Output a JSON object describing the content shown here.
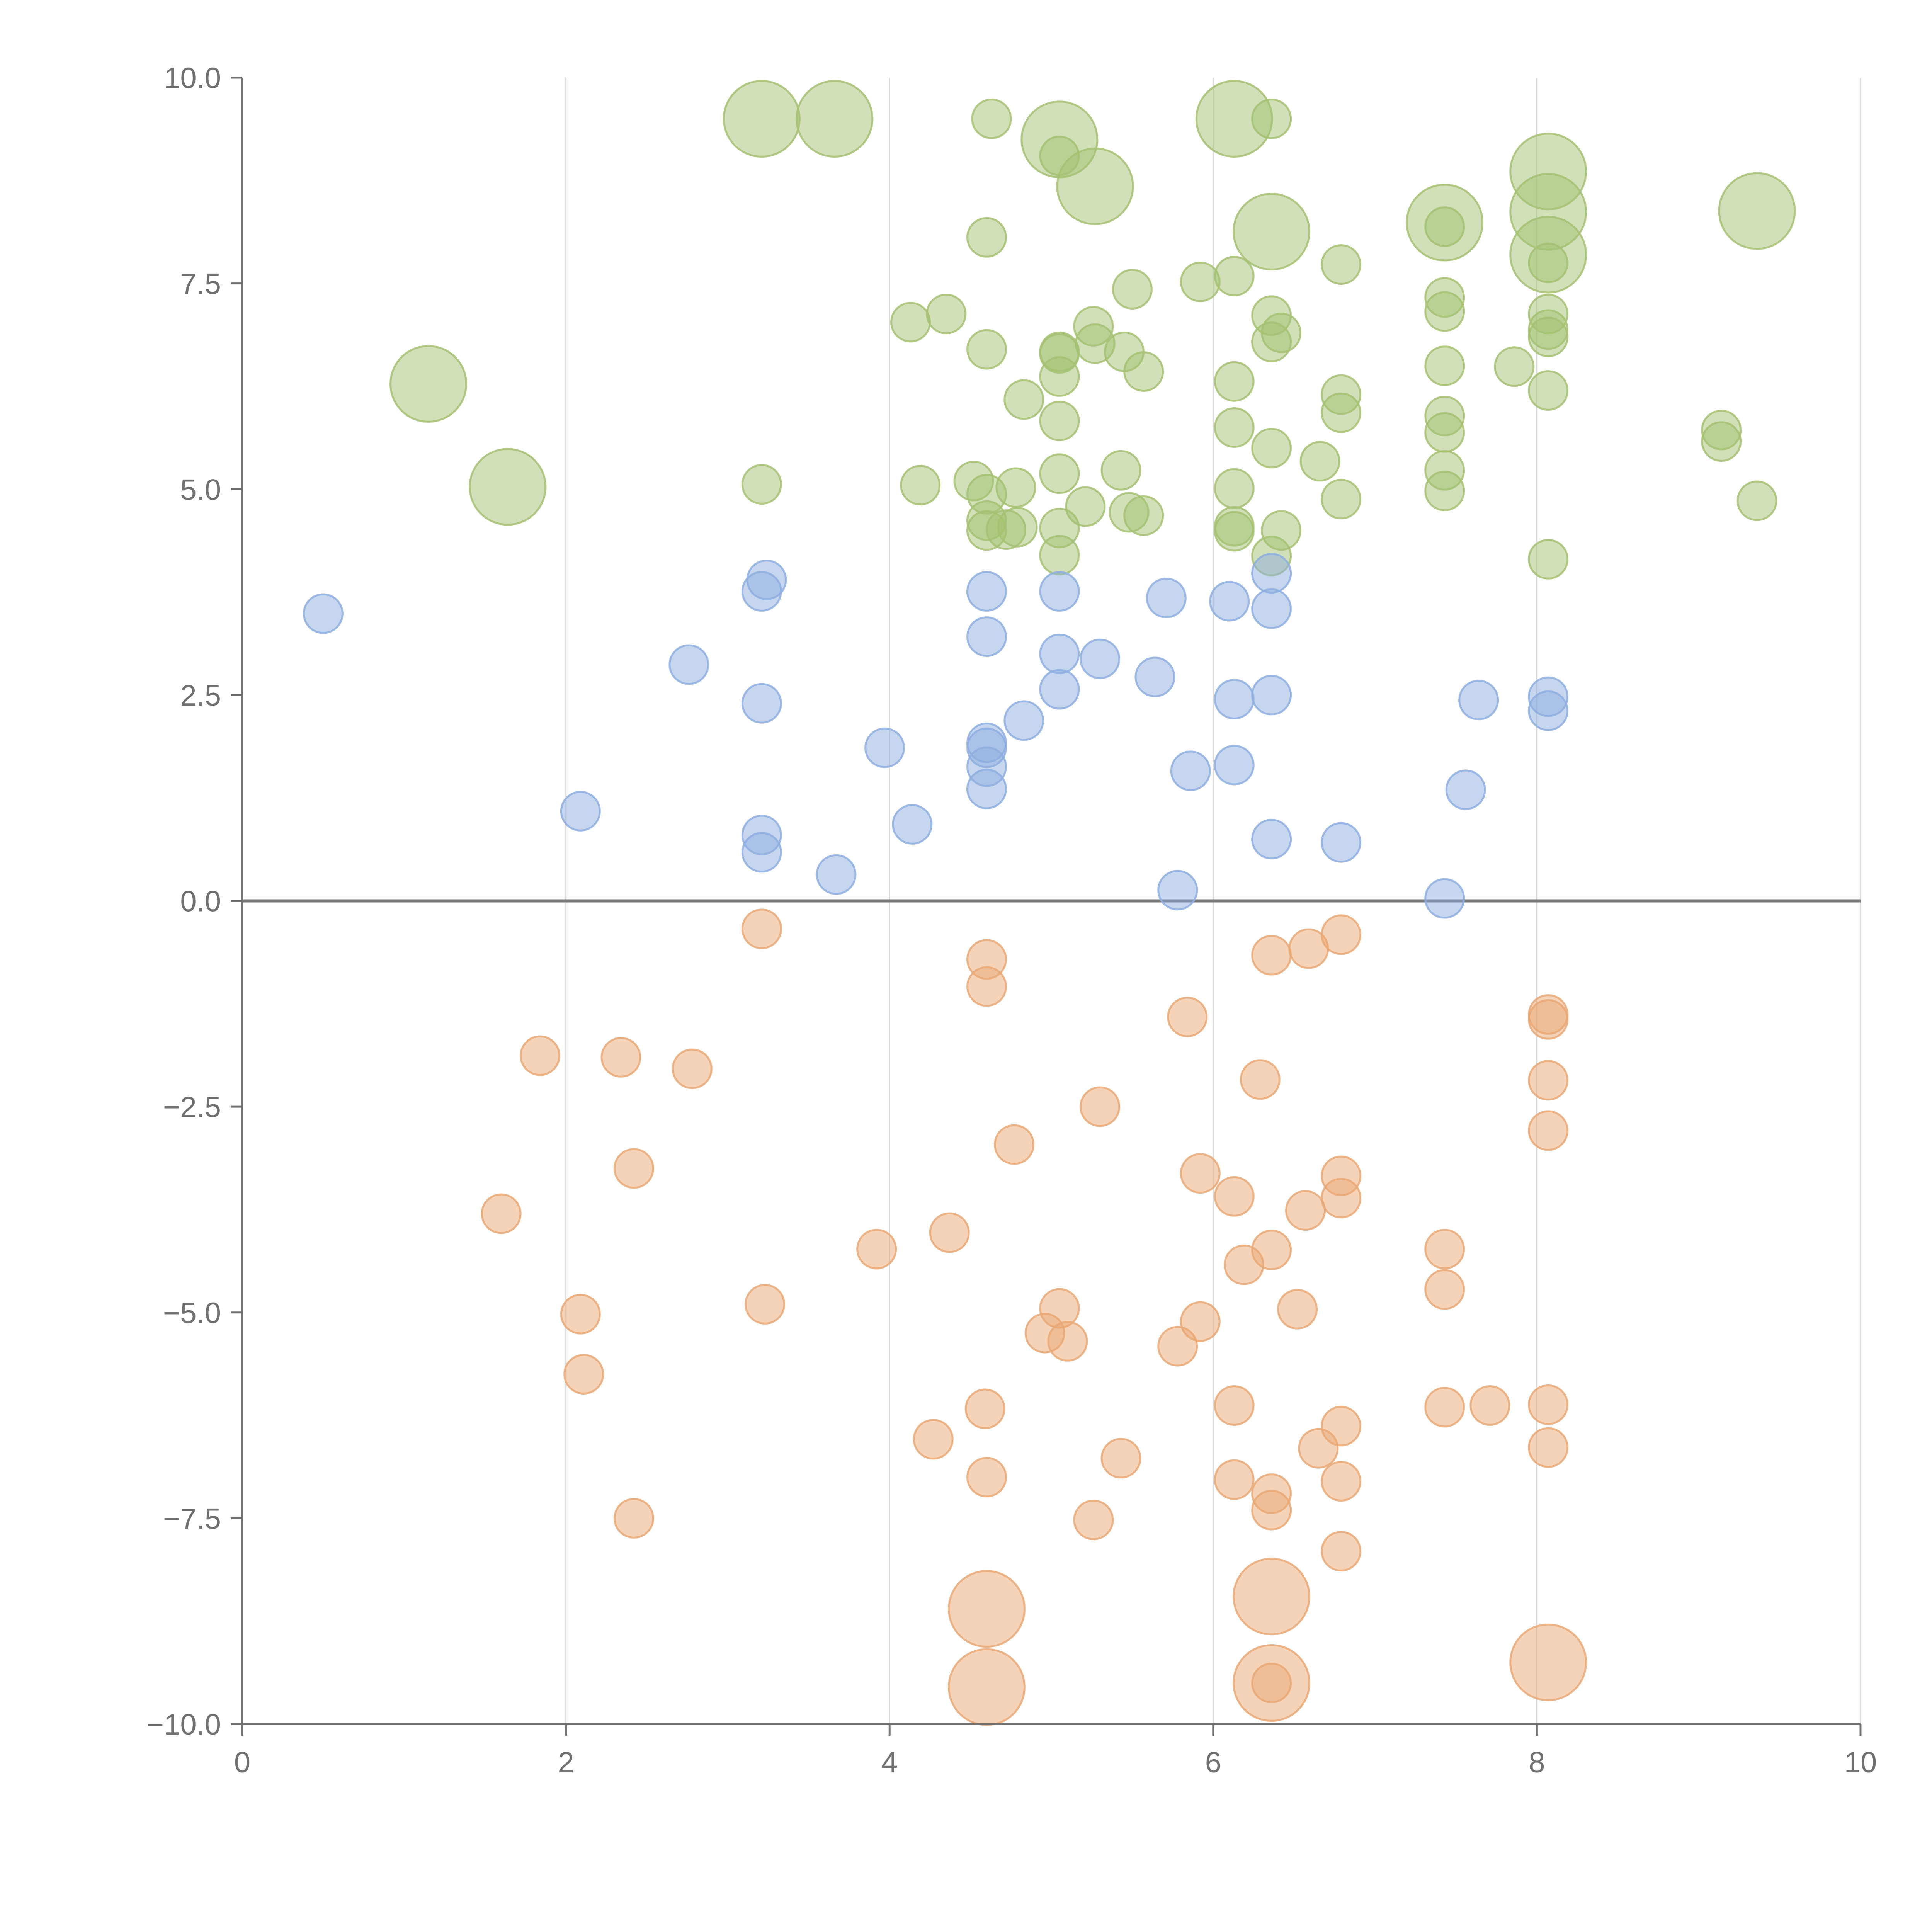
{
  "colors": {
    "background": "#ffffff",
    "grid": "#d9d9d9",
    "axis": "#707070",
    "zero_line": "#777777",
    "tick_text": "#707070",
    "label_text": "#ffffff"
  },
  "chart_data": {
    "type": "scatter",
    "subtype": "bubble",
    "title": "",
    "xlabel": "",
    "ylabel": "",
    "xlim": [
      0,
      10
    ],
    "ylim": [
      -10,
      10
    ],
    "grid": {
      "vertical": true,
      "horizontal": false
    },
    "zero_line": true,
    "x_ticks": [
      "0",
      "2",
      "4",
      "6",
      "8",
      "10"
    ],
    "y_ticks": [
      "−10.0",
      "−7.5",
      "−5.0",
      "−2.5",
      "0.0",
      "2.5",
      "5.0",
      "7.5",
      "10.0"
    ],
    "series": [
      {
        "color": "#a4c171",
        "points": [
          [
            1.15,
            6.28,
            1
          ],
          [
            1.64,
            5.03,
            1
          ],
          [
            3.21,
            9.5,
            1
          ],
          [
            3.66,
            9.5,
            1
          ],
          [
            5.27,
            8.68,
            1
          ],
          [
            5.05,
            9.25,
            1
          ],
          [
            6.13,
            9.5,
            1
          ],
          [
            6.36,
            8.13,
            1
          ],
          [
            7.43,
            8.24,
            1
          ],
          [
            8.07,
            8.86,
            1
          ],
          [
            8.07,
            8.37,
            1
          ],
          [
            8.07,
            7.85,
            1
          ],
          [
            9.36,
            8.38,
            1
          ],
          [
            3.21,
            5.06,
            0
          ],
          [
            4.13,
            7.03,
            0
          ],
          [
            4.35,
            7.13,
            0
          ],
          [
            4.6,
            8.06,
            0
          ],
          [
            4.63,
            9.5,
            0
          ],
          [
            4.6,
            6.7,
            0
          ],
          [
            4.19,
            5.05,
            0
          ],
          [
            4.52,
            5.1,
            0
          ],
          [
            4.6,
            4.94,
            0
          ],
          [
            4.78,
            5.02,
            0
          ],
          [
            4.6,
            4.62,
            0
          ],
          [
            4.72,
            4.51,
            0
          ],
          [
            4.79,
            4.54,
            0
          ],
          [
            4.6,
            4.5,
            0
          ],
          [
            4.83,
            6.09,
            0
          ],
          [
            5.05,
            9.05,
            0
          ],
          [
            5.05,
            6.67,
            0
          ],
          [
            5.05,
            6.65,
            0
          ],
          [
            5.05,
            6.37,
            0
          ],
          [
            5.05,
            5.83,
            0
          ],
          [
            5.05,
            5.19,
            0
          ],
          [
            5.05,
            4.53,
            0
          ],
          [
            5.05,
            4.2,
            0
          ],
          [
            5.21,
            4.79,
            0
          ],
          [
            5.26,
            6.98,
            0
          ],
          [
            5.27,
            6.77,
            0
          ],
          [
            5.43,
            5.23,
            0
          ],
          [
            5.45,
            6.67,
            0
          ],
          [
            5.48,
            4.72,
            0
          ],
          [
            5.5,
            7.43,
            0
          ],
          [
            5.57,
            6.43,
            0
          ],
          [
            5.57,
            4.68,
            0
          ],
          [
            5.92,
            7.52,
            0
          ],
          [
            6.13,
            7.59,
            0
          ],
          [
            6.13,
            6.31,
            0
          ],
          [
            6.13,
            5.75,
            0
          ],
          [
            6.13,
            5.01,
            0
          ],
          [
            6.13,
            4.55,
            0
          ],
          [
            6.13,
            4.49,
            0
          ],
          [
            6.36,
            9.5,
            0
          ],
          [
            6.36,
            7.11,
            0
          ],
          [
            6.36,
            6.79,
            0
          ],
          [
            6.36,
            5.5,
            0
          ],
          [
            6.36,
            4.19,
            0
          ],
          [
            6.42,
            6.9,
            0
          ],
          [
            6.42,
            4.5,
            0
          ],
          [
            6.66,
            5.34,
            0
          ],
          [
            6.79,
            7.73,
            0
          ],
          [
            6.79,
            6.15,
            0
          ],
          [
            6.79,
            5.93,
            0
          ],
          [
            6.79,
            4.88,
            0
          ],
          [
            7.43,
            8.19,
            0
          ],
          [
            7.43,
            7.33,
            0
          ],
          [
            7.43,
            7.16,
            0
          ],
          [
            7.43,
            6.5,
            0
          ],
          [
            7.43,
            5.89,
            0
          ],
          [
            7.43,
            5.69,
            0
          ],
          [
            7.43,
            5.23,
            0
          ],
          [
            7.43,
            4.98,
            0
          ],
          [
            7.86,
            6.49,
            0
          ],
          [
            8.07,
            7.75,
            0
          ],
          [
            8.07,
            7.13,
            0
          ],
          [
            8.07,
            6.94,
            0
          ],
          [
            8.07,
            6.85,
            0
          ],
          [
            8.07,
            6.2,
            0
          ],
          [
            8.07,
            4.15,
            0
          ],
          [
            9.14,
            5.72,
            0
          ],
          [
            9.14,
            5.58,
            0
          ],
          [
            9.36,
            4.86,
            0
          ]
        ]
      },
      {
        "color": "#8daee0",
        "points": [
          [
            0.5,
            3.49,
            0
          ],
          [
            2.09,
            1.09,
            0
          ],
          [
            2.76,
            2.87,
            0
          ],
          [
            3.21,
            3.76,
            0
          ],
          [
            3.24,
            3.9,
            0
          ],
          [
            3.21,
            2.4,
            0
          ],
          [
            3.21,
            0.8,
            0
          ],
          [
            3.21,
            0.59,
            0
          ],
          [
            3.67,
            0.32,
            0
          ],
          [
            3.97,
            1.86,
            0
          ],
          [
            4.14,
            0.93,
            0
          ],
          [
            4.6,
            3.76,
            0
          ],
          [
            4.6,
            3.21,
            0
          ],
          [
            4.6,
            1.92,
            0
          ],
          [
            4.6,
            1.86,
            0
          ],
          [
            4.6,
            1.63,
            0
          ],
          [
            4.6,
            1.36,
            0
          ],
          [
            4.83,
            2.19,
            0
          ],
          [
            5.05,
            3.76,
            0
          ],
          [
            5.05,
            3.0,
            0
          ],
          [
            5.05,
            2.57,
            0
          ],
          [
            5.3,
            2.94,
            0
          ],
          [
            5.64,
            2.72,
            0
          ],
          [
            5.71,
            3.68,
            0
          ],
          [
            5.78,
            0.13,
            0
          ],
          [
            5.86,
            1.58,
            0
          ],
          [
            6.1,
            3.64,
            0
          ],
          [
            6.13,
            2.45,
            0
          ],
          [
            6.13,
            1.65,
            0
          ],
          [
            6.36,
            3.98,
            0
          ],
          [
            6.36,
            3.55,
            0
          ],
          [
            6.36,
            2.5,
            0
          ],
          [
            6.36,
            0.75,
            0
          ],
          [
            6.79,
            0.71,
            0
          ],
          [
            7.43,
            0.03,
            0
          ],
          [
            7.56,
            1.35,
            0
          ],
          [
            7.64,
            2.44,
            0
          ],
          [
            8.07,
            2.48,
            0
          ],
          [
            8.07,
            2.31,
            0
          ]
        ]
      },
      {
        "color": "#e9a874",
        "points": [
          [
            4.6,
            -8.6,
            1
          ],
          [
            4.6,
            -9.55,
            1
          ],
          [
            6.36,
            -8.45,
            1
          ],
          [
            6.36,
            -9.5,
            1
          ],
          [
            8.07,
            -9.25,
            1
          ],
          [
            1.6,
            -3.8,
            0
          ],
          [
            1.84,
            -1.88,
            0
          ],
          [
            2.09,
            -5.02,
            0
          ],
          [
            2.11,
            -5.75,
            0
          ],
          [
            2.34,
            -1.9,
            0
          ],
          [
            2.42,
            -3.25,
            0
          ],
          [
            2.42,
            -7.5,
            0
          ],
          [
            2.78,
            -2.04,
            0
          ],
          [
            3.21,
            -0.34,
            0
          ],
          [
            3.23,
            -4.9,
            0
          ],
          [
            3.92,
            -4.23,
            0
          ],
          [
            4.27,
            -6.54,
            0
          ],
          [
            4.37,
            -4.03,
            0
          ],
          [
            4.6,
            -0.71,
            0
          ],
          [
            4.6,
            -1.04,
            0
          ],
          [
            4.59,
            -6.17,
            0
          ],
          [
            4.6,
            -7.0,
            0
          ],
          [
            4.77,
            -2.96,
            0
          ],
          [
            4.96,
            -5.25,
            0
          ],
          [
            5.05,
            -4.95,
            0
          ],
          [
            5.1,
            -5.35,
            0
          ],
          [
            5.26,
            -7.52,
            0
          ],
          [
            5.3,
            -2.5,
            0
          ],
          [
            5.43,
            -6.77,
            0
          ],
          [
            5.78,
            -5.41,
            0
          ],
          [
            5.84,
            -1.41,
            0
          ],
          [
            5.92,
            -3.31,
            0
          ],
          [
            5.92,
            -5.11,
            0
          ],
          [
            6.13,
            -3.59,
            0
          ],
          [
            6.13,
            -6.13,
            0
          ],
          [
            6.13,
            -7.03,
            0
          ],
          [
            6.19,
            -4.42,
            0
          ],
          [
            6.29,
            -2.17,
            0
          ],
          [
            6.36,
            -0.66,
            0
          ],
          [
            6.36,
            -4.24,
            0
          ],
          [
            6.36,
            -7.2,
            0
          ],
          [
            6.36,
            -7.4,
            0
          ],
          [
            6.36,
            -9.5,
            0
          ],
          [
            6.52,
            -4.96,
            0
          ],
          [
            6.57,
            -3.76,
            0
          ],
          [
            6.59,
            -0.58,
            0
          ],
          [
            6.65,
            -6.65,
            0
          ],
          [
            6.79,
            -0.41,
            0
          ],
          [
            6.79,
            -3.34,
            0
          ],
          [
            6.79,
            -3.61,
            0
          ],
          [
            6.79,
            -6.38,
            0
          ],
          [
            6.79,
            -7.05,
            0
          ],
          [
            6.79,
            -7.9,
            0
          ],
          [
            7.43,
            -4.23,
            0
          ],
          [
            7.43,
            -4.72,
            0
          ],
          [
            7.43,
            -6.15,
            0
          ],
          [
            7.71,
            -6.13,
            0
          ],
          [
            8.07,
            -1.38,
            0
          ],
          [
            8.07,
            -1.44,
            0
          ],
          [
            8.07,
            -2.18,
            0
          ],
          [
            8.07,
            -2.79,
            0
          ],
          [
            8.07,
            -6.12,
            0
          ],
          [
            8.07,
            -6.64,
            0
          ]
        ]
      }
    ]
  }
}
